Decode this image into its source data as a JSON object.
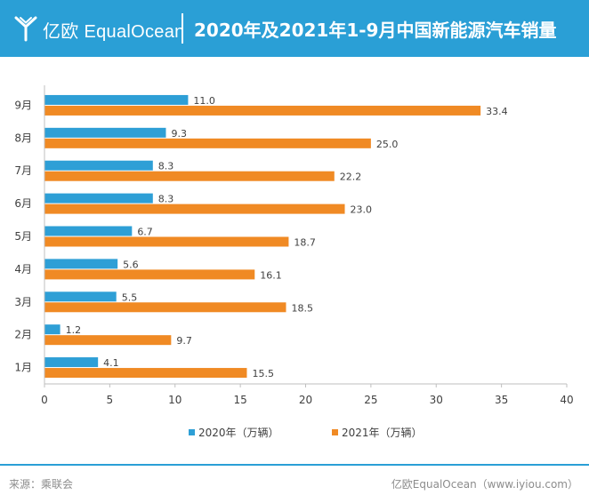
{
  "header": {
    "brand": "亿欧 EqualOcean",
    "title": "2020年及2021年1-9月中国新能源汽车销量"
  },
  "colors": {
    "header_bg": "#2a9fd6",
    "series_2020": "#2e9fd6",
    "series_2021": "#f08a24"
  },
  "legend": {
    "series_2020": "2020年（万辆）",
    "series_2021": "2021年（万辆）"
  },
  "footer": {
    "source": "来源：乘联会",
    "site": "亿欧EqualOcean（www.iyiou.com）"
  },
  "chart_data": {
    "type": "bar",
    "orientation": "horizontal",
    "title": "2020年及2021年1-9月中国新能源汽车销量",
    "categories": [
      "1月",
      "2月",
      "3月",
      "4月",
      "5月",
      "6月",
      "7月",
      "8月",
      "9月"
    ],
    "series": [
      {
        "name": "2020年（万辆）",
        "values": [
          4.1,
          1.2,
          5.5,
          5.6,
          6.7,
          8.3,
          8.3,
          9.3,
          11.0
        ],
        "labels": [
          "4.1",
          "1.2",
          "5.5",
          "5.6",
          "6.7",
          "8.3",
          "8.3",
          "9.3",
          "11.0"
        ]
      },
      {
        "name": "2021年（万辆）",
        "values": [
          15.5,
          9.7,
          18.5,
          16.1,
          18.7,
          23.0,
          22.2,
          25.0,
          33.4
        ],
        "labels": [
          "15.5",
          "9.7",
          "18.5",
          "16.1",
          "18.7",
          "23.0",
          "22.2",
          "25.0",
          "33.4"
        ]
      }
    ],
    "xlim": [
      0,
      40
    ],
    "ticks": [
      0,
      5,
      10,
      15,
      20,
      25,
      30,
      35,
      40
    ],
    "tick_labels": [
      "0",
      "5",
      "10",
      "15",
      "20",
      "25",
      "30",
      "35",
      "40"
    ],
    "grid": false,
    "legend_position": "bottom"
  }
}
